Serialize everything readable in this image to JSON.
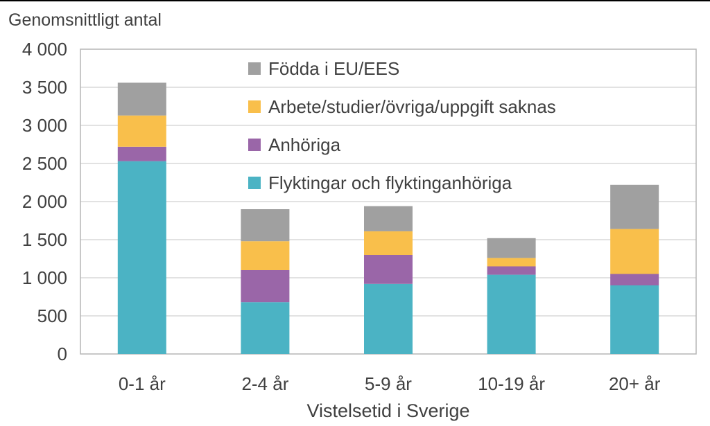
{
  "chart_data": {
    "type": "bar",
    "stacked": true,
    "ylabel": "Genomsnittligt antal",
    "xlabel": "Vistelsetid i Sverige",
    "categories": [
      "0-1 år",
      "2-4 år",
      "5-9 år",
      "10-19 år",
      "20+ år"
    ],
    "ylim": [
      0,
      4000
    ],
    "yticks": [
      0,
      500,
      1000,
      1500,
      2000,
      2500,
      3000,
      3500,
      4000
    ],
    "ytick_labels": [
      "0",
      "500",
      "1 000",
      "1 500",
      "2 000",
      "2 500",
      "3 000",
      "3 500",
      "4 000"
    ],
    "grid": true,
    "legend_position": "top-center, inside plot",
    "series": [
      {
        "name": "Flyktingar och flyktinganhöriga",
        "color": "#4bb3c4",
        "values": [
          2530,
          680,
          920,
          1040,
          900
        ]
      },
      {
        "name": "Anhöriga",
        "color": "#9a66a8",
        "values": [
          190,
          420,
          380,
          110,
          150
        ]
      },
      {
        "name": "Arbete/studier/övriga/uppgift saknas",
        "color": "#f9bf4b",
        "values": [
          410,
          380,
          310,
          110,
          590
        ]
      },
      {
        "name": "Födda i EU/EES",
        "color": "#a0a0a0",
        "values": [
          430,
          420,
          330,
          260,
          580
        ]
      }
    ]
  }
}
